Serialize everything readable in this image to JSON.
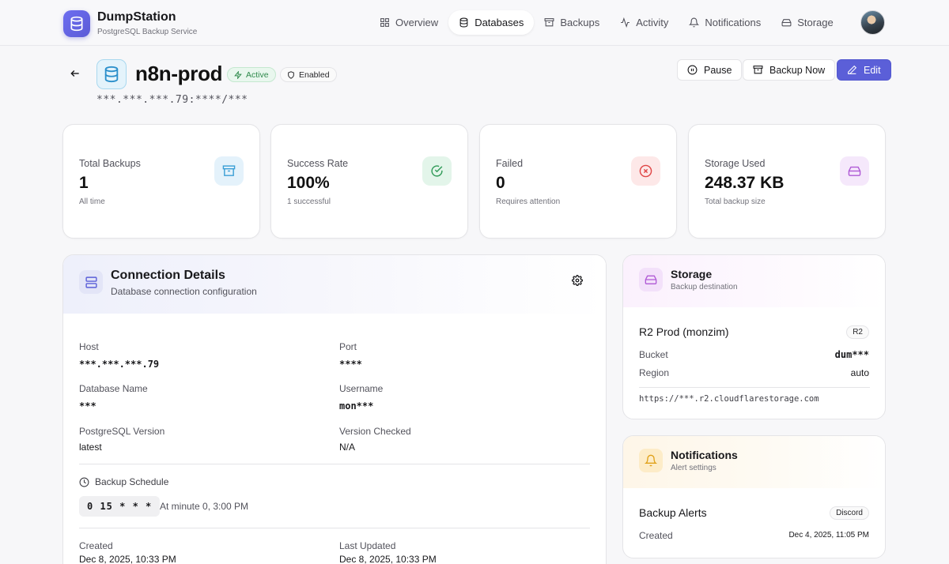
{
  "app": {
    "name": "DumpStation",
    "subtitle": "PostgreSQL Backup Service"
  },
  "nav": [
    {
      "label": "Overview",
      "icon": "grid-icon",
      "active": false
    },
    {
      "label": "Databases",
      "icon": "database-icon",
      "active": true
    },
    {
      "label": "Backups",
      "icon": "archive-icon",
      "active": false
    },
    {
      "label": "Activity",
      "icon": "activity-icon",
      "active": false
    },
    {
      "label": "Notifications",
      "icon": "bell-icon",
      "active": false
    },
    {
      "label": "Storage",
      "icon": "hard-drive-icon",
      "active": false
    }
  ],
  "database": {
    "name": "n8n-prod",
    "status_badge": "Active",
    "enabled_badge": "Enabled",
    "connection_string": "***.***.***.79:****/***"
  },
  "actions": {
    "pause": "Pause",
    "backup_now": "Backup Now",
    "edit": "Edit"
  },
  "stats": [
    {
      "label": "Total Backups",
      "value": "1",
      "sub": "All time",
      "icon": "archive-icon",
      "color": "#3b9fd6"
    },
    {
      "label": "Success Rate",
      "value": "100%",
      "sub": "1 successful",
      "icon": "check-circle-icon",
      "color": "#2f9a57"
    },
    {
      "label": "Failed",
      "value": "0",
      "sub": "Requires attention",
      "icon": "x-circle-icon",
      "color": "#e04545"
    },
    {
      "label": "Storage Used",
      "value": "248.37 KB",
      "sub": "Total backup size",
      "icon": "hard-drive-icon",
      "color": "#b05ad6"
    }
  ],
  "connection": {
    "title": "Connection Details",
    "subtitle": "Database connection configuration",
    "host_label": "Host",
    "host": "***.***.***.79",
    "port_label": "Port",
    "port": "****",
    "dbname_label": "Database Name",
    "dbname": "***",
    "username_label": "Username",
    "username": "mon***",
    "pgversion_label": "PostgreSQL Version",
    "pgversion": "latest",
    "version_checked_label": "Version Checked",
    "version_checked": "N/A",
    "schedule_label": "Backup Schedule",
    "cron": "0 15 * * *",
    "cron_desc": "At minute 0, 3:00 PM",
    "created_label": "Created",
    "created": "Dec 8, 2025, 10:33 PM",
    "updated_label": "Last Updated",
    "updated": "Dec 8, 2025, 10:33 PM"
  },
  "storage": {
    "title": "Storage",
    "subtitle": "Backup destination",
    "name": "R2 Prod (monzim)",
    "type_badge": "R2",
    "bucket_label": "Bucket",
    "bucket": "dum***",
    "region_label": "Region",
    "region": "auto",
    "endpoint": "https://***.r2.cloudflarestorage.com"
  },
  "notifications": {
    "title": "Notifications",
    "subtitle": "Alert settings",
    "name": "Backup Alerts",
    "type_badge": "Discord",
    "created_label": "Created",
    "created": "Dec 4, 2025, 11:05 PM"
  }
}
